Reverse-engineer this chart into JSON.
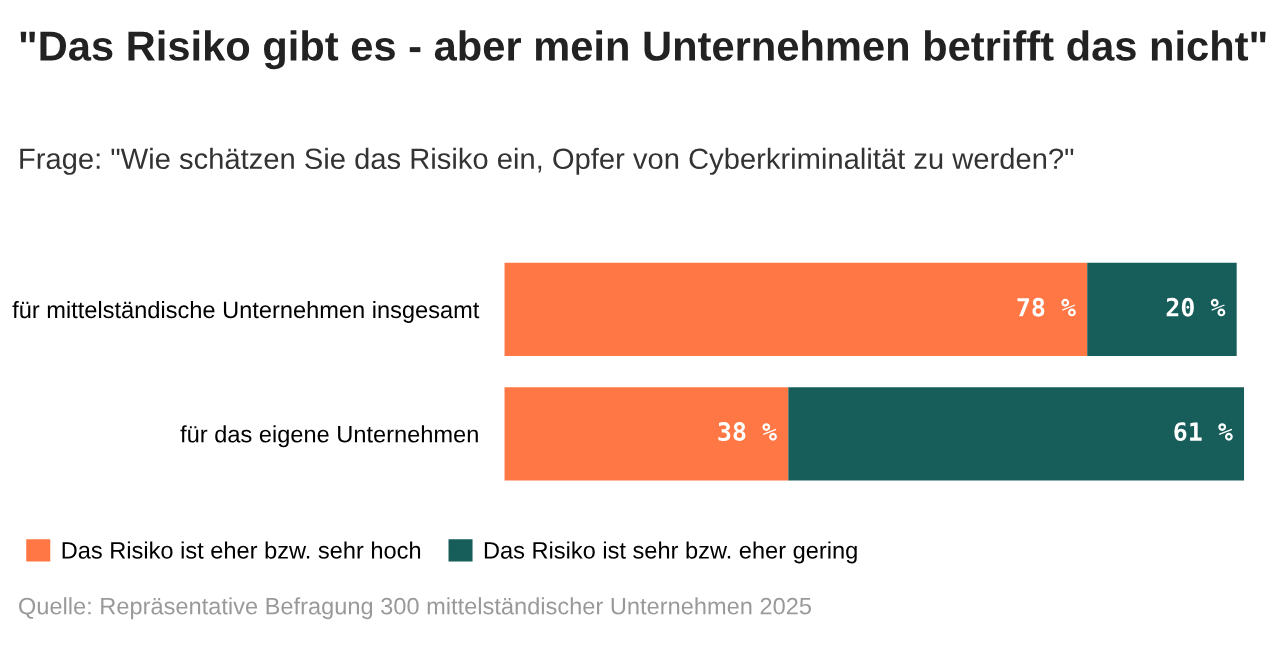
{
  "chart_data": {
    "type": "bar",
    "orientation": "horizontal",
    "stacked": true,
    "title": "\"Das Risiko gibt es - aber mein Unternehmen betrifft das nicht\"",
    "subtitle": "Frage: \"Wie schätzen Sie das Risiko ein, Opfer von Cyberkriminalität zu werden?\"",
    "categories": [
      "für mittelständische Unternehmen insgesamt",
      "für das eigene Unternehmen"
    ],
    "series": [
      {
        "name": "Das Risiko ist eher bzw. sehr hoch",
        "color": "#ff7744",
        "values": [
          78,
          38
        ],
        "value_labels": [
          "78 %",
          "38 %"
        ]
      },
      {
        "name": "Das Risiko ist sehr bzw. eher gering",
        "color": "#175e5b",
        "values": [
          20,
          61
        ],
        "value_labels": [
          "20 %",
          "61 %"
        ]
      }
    ],
    "xlim": [
      0,
      99
    ],
    "tick_labels": false,
    "grid": false,
    "legend": "bottom",
    "annotations": [
      "Quelle: Repräsentative Befragung 300 mittelständischer Unternehmen 2025"
    ]
  }
}
